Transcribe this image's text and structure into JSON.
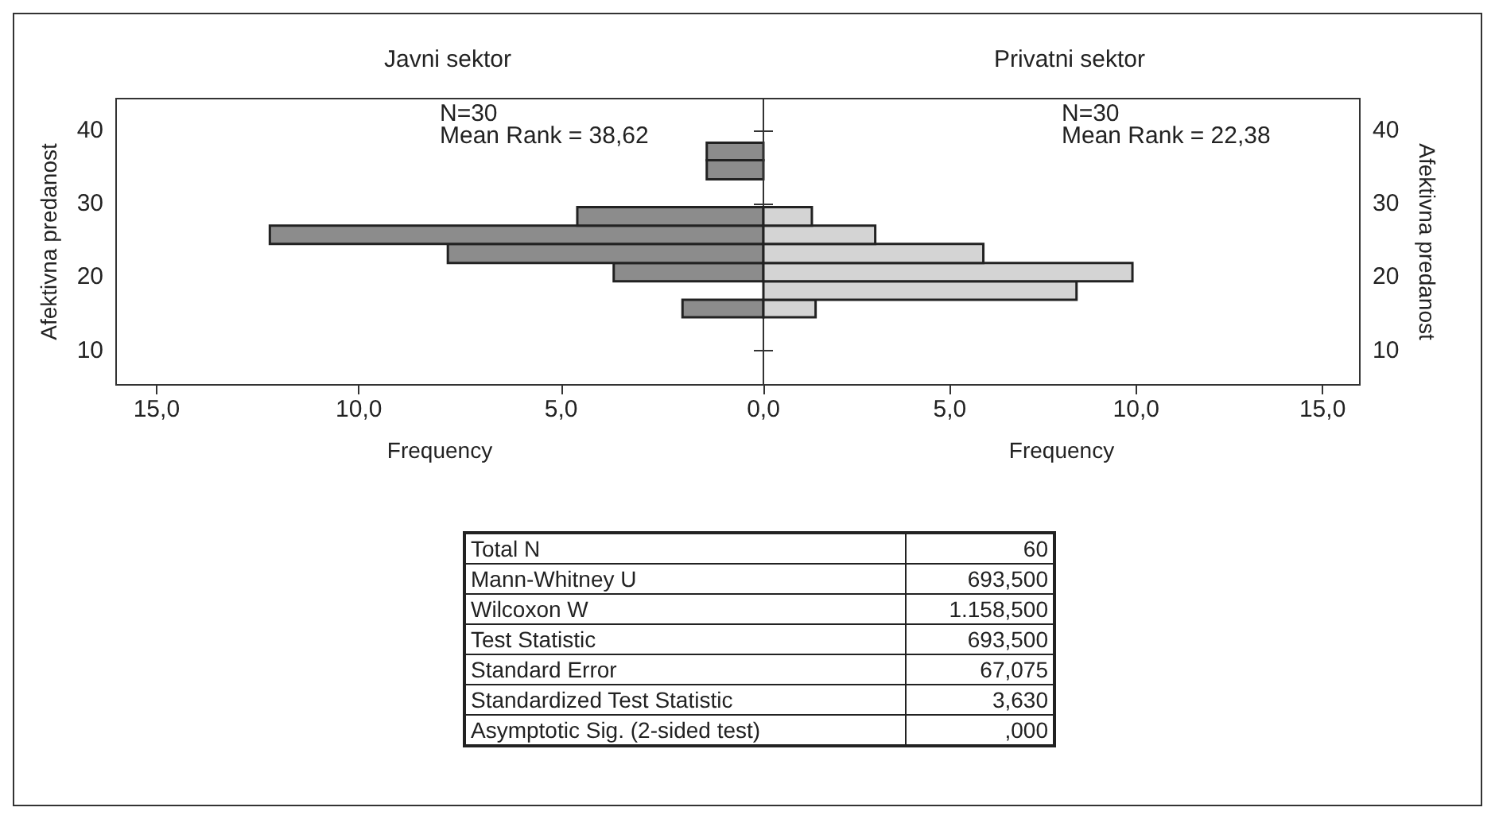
{
  "chart_data": [
    {
      "type": "histogram",
      "orientation": "horizontal",
      "title": "Javni sektor",
      "xlabel": "Frequency",
      "ylabel": "Afektivna predanost",
      "annotations": [
        "N=30",
        "Mean Rank = 38,62"
      ],
      "color": "#8c8c8c",
      "bins": [
        14.5,
        16.9,
        19.4,
        21.9,
        24.5,
        27.0,
        29.5,
        33.3,
        35.9,
        38.3
      ],
      "values": [
        2.0,
        null,
        3.7,
        7.8,
        12.2,
        4.6,
        null,
        1.4,
        1.4
      ],
      "xlim": [
        16,
        0
      ],
      "xticks": [
        {
          "value": 15,
          "label": "15,0"
        },
        {
          "value": 10,
          "label": "10,0"
        },
        {
          "value": 5,
          "label": "5,0"
        },
        {
          "value": 0,
          "label": "0,0"
        }
      ],
      "ylim": [
        5.3,
        44.3
      ],
      "yticks": [
        10,
        20,
        30,
        40
      ]
    },
    {
      "type": "histogram",
      "orientation": "horizontal",
      "title": "Privatni sektor",
      "xlabel": "Frequency",
      "ylabel": "Afektivna predanost",
      "annotations": [
        "N=30",
        "Mean Rank = 22,38"
      ],
      "color": "#d4d4d4",
      "bins": [
        14.5,
        16.9,
        19.4,
        21.9,
        24.5,
        27.0,
        29.5
      ],
      "values": [
        1.4,
        8.4,
        9.9,
        5.9,
        3.0,
        1.3
      ],
      "xlim": [
        0,
        16
      ],
      "xticks": [
        {
          "value": 0,
          "label": null
        },
        {
          "value": 5,
          "label": "5,0"
        },
        {
          "value": 10,
          "label": "10,0"
        },
        {
          "value": 15,
          "label": "15,0"
        }
      ],
      "ylim": [
        5.3,
        44.3
      ],
      "yticks": [
        10,
        20,
        30,
        40
      ]
    },
    {
      "type": "other",
      "annotations": [
        "Total N",
        "60",
        "Mann-Whitney U",
        "693,500",
        "Wilcoxon W",
        "1.158,500",
        "Test Statistic",
        "693,500",
        "Standard Error",
        "67,075",
        "Standardized Test Statistic",
        "3,630",
        "Asymptotic Sig. (2-sided test)",
        ",000"
      ]
    }
  ]
}
